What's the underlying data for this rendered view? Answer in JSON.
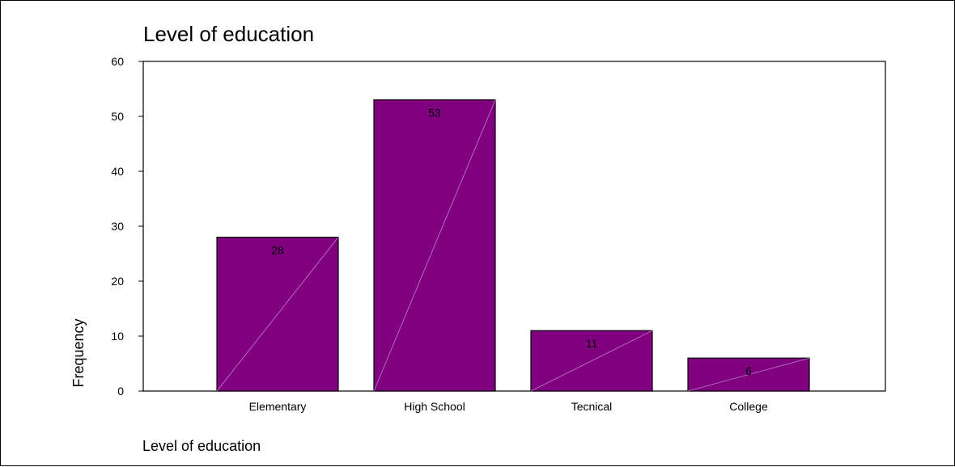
{
  "chart_data": {
    "type": "bar",
    "title": "Level of education",
    "xlabel": "Level of education",
    "ylabel": "Frequency",
    "categories": [
      "Elementary",
      "High School",
      "Tecnical",
      "College"
    ],
    "values": [
      28,
      53,
      11,
      6
    ],
    "data_labels": [
      "28",
      "53",
      "11",
      "6"
    ],
    "ylim": [
      0,
      60
    ],
    "yticks": [
      0,
      10,
      20,
      30,
      40,
      50,
      60
    ],
    "ytick_labels": [
      "0",
      "10",
      "20",
      "30",
      "40",
      "50",
      "60"
    ],
    "grid": false,
    "legend": "none",
    "bar_color": "#800080",
    "bar_outline_color": "#000000",
    "bar_diagonal_color": "#c080d0"
  }
}
